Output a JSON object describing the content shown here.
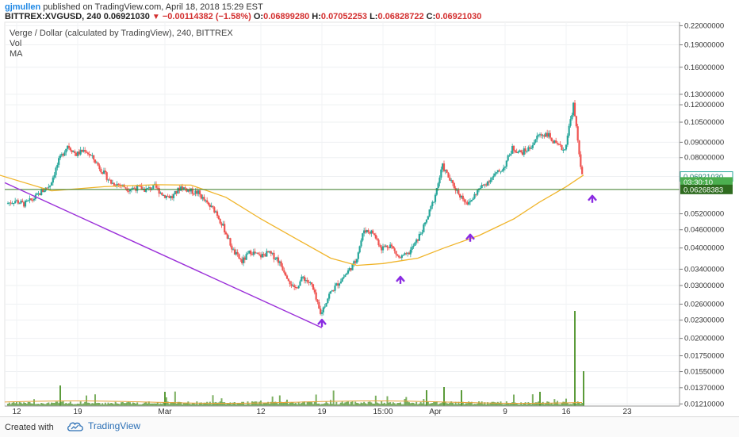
{
  "header": {
    "user": "gjmullen",
    "published": " published on TradingView.com, April 18, 2018 15:29 EST",
    "symbol": "BITTREX:XVGUSD, 240",
    "price": "0.06921030",
    "change": "−0.00114382 (−1.58%)",
    "ohlc": {
      "o_label": "O:",
      "o": "0.06899280",
      "h_label": "H:",
      "h": "0.07052253",
      "l_label": "L:",
      "l": "0.06828722",
      "c_label": "C:",
      "c": "0.06921030"
    }
  },
  "legend": {
    "title": "Verge / Dollar (calculated by TradingView), 240, BITTREX",
    "vol": "Vol",
    "ma": "MA"
  },
  "footer": {
    "created": "Created with",
    "brand": "TradingView"
  },
  "colors": {
    "up": "#26a69a",
    "down": "#ef5350",
    "ma": "#f0b429",
    "trendline": "#9b30d9",
    "hline": "#3a7d27",
    "arrow": "#8a2be2",
    "vol": "#5b9b3a"
  },
  "chart_data": {
    "type": "candlestick",
    "title": "Verge / Dollar (calculated by TradingView), 240, BITTREX",
    "y_scale": "log",
    "ylim": [
      0.0119,
      0.226
    ],
    "y_ticks": [
      "0.22000000",
      "0.19000000",
      "0.16000000",
      "0.13000000",
      "0.12000000",
      "0.10500000",
      "0.09000000",
      "0.08000000",
      "0.06921030",
      "0.06268383",
      "0.05200000",
      "0.04600000",
      "0.04000000",
      "0.03400000",
      "0.03000000",
      "0.02600000",
      "0.02300000",
      "0.02000000",
      "0.01750000",
      "0.01550000",
      "0.01370000",
      "0.01210000"
    ],
    "x_ticks": [
      "12",
      "19",
      "Mar",
      "12",
      "19",
      "15:00",
      "Apr",
      "9",
      "16",
      "23"
    ],
    "price_tags": [
      {
        "label": "0.06921030",
        "value": 0.0692103,
        "style": "outline"
      },
      {
        "label": "03:30:10",
        "value": 0.0664,
        "style": "green"
      },
      {
        "label": "0.06268383",
        "value": 0.06268383,
        "style": "dark-green"
      }
    ],
    "horizontal_line": 0.06268383,
    "trendline": {
      "from": [
        "Feb 10",
        0.066
      ],
      "to": [
        "Mar 19",
        0.0217
      ]
    },
    "arrows": [
      {
        "date": "Mar 19",
        "value": 0.0228
      },
      {
        "date": "Mar 28",
        "value": 0.0317
      },
      {
        "date": "Apr 5",
        "value": 0.0438
      },
      {
        "date": "Apr 19",
        "value": 0.059
      }
    ],
    "close_series": [
      [
        "Feb 11",
        0.0562
      ],
      [
        "Feb 12",
        0.0575
      ],
      [
        "Feb 13",
        0.056
      ],
      [
        "Feb 14",
        0.058
      ],
      [
        "Feb 15",
        0.0615
      ],
      [
        "Feb 16",
        0.065
      ],
      [
        "Feb 17",
        0.078
      ],
      [
        "Feb 18",
        0.088
      ],
      [
        "Feb 19",
        0.082
      ],
      [
        "Feb 20",
        0.085
      ],
      [
        "Feb 21",
        0.079
      ],
      [
        "Feb 22",
        0.072
      ],
      [
        "Feb 23",
        0.066
      ],
      [
        "Feb 24",
        0.065
      ],
      [
        "Feb 25",
        0.063
      ],
      [
        "Feb 26",
        0.0635
      ],
      [
        "Feb 27",
        0.0625
      ],
      [
        "Feb 28",
        0.064
      ],
      [
        "Mar 1",
        0.06
      ],
      [
        "Mar 2",
        0.059
      ],
      [
        "Mar 3",
        0.064
      ],
      [
        "Mar 4",
        0.062
      ],
      [
        "Mar 5",
        0.061
      ],
      [
        "Mar 6",
        0.056
      ],
      [
        "Mar 7",
        0.053
      ],
      [
        "Mar 8",
        0.046
      ],
      [
        "Mar 9",
        0.039
      ],
      [
        "Mar 10",
        0.036
      ],
      [
        "Mar 11",
        0.039
      ],
      [
        "Mar 12",
        0.0375
      ],
      [
        "Mar 13",
        0.0385
      ],
      [
        "Mar 14",
        0.037
      ],
      [
        "Mar 15",
        0.033
      ],
      [
        "Mar 16",
        0.029
      ],
      [
        "Mar 17",
        0.032
      ],
      [
        "Mar 18",
        0.03
      ],
      [
        "Mar 19",
        0.024
      ],
      [
        "Mar 20",
        0.028
      ],
      [
        "Mar 21",
        0.0305
      ],
      [
        "Mar 22",
        0.033
      ],
      [
        "Mar 23",
        0.036
      ],
      [
        "Mar 24",
        0.046
      ],
      [
        "Mar 25",
        0.045
      ],
      [
        "Mar 26",
        0.04
      ],
      [
        "Mar 27",
        0.041
      ],
      [
        "Mar 28",
        0.037
      ],
      [
        "Mar 29",
        0.038
      ],
      [
        "Mar 30",
        0.042
      ],
      [
        "Mar 31",
        0.048
      ],
      [
        "Apr 1",
        0.058
      ],
      [
        "Apr 2",
        0.075
      ],
      [
        "Apr 3",
        0.066
      ],
      [
        "Apr 4",
        0.06
      ],
      [
        "Apr 5",
        0.056
      ],
      [
        "Apr 6",
        0.062
      ],
      [
        "Apr 7",
        0.066
      ],
      [
        "Apr 8",
        0.07
      ],
      [
        "Apr 9",
        0.074
      ],
      [
        "Apr 10",
        0.086
      ],
      [
        "Apr 11",
        0.083
      ],
      [
        "Apr 12",
        0.086
      ],
      [
        "Apr 13",
        0.095
      ],
      [
        "Apr 14",
        0.096
      ],
      [
        "Apr 15",
        0.088
      ],
      [
        "Apr 16",
        0.085
      ],
      [
        "Apr 17",
        0.12
      ],
      [
        "Apr 18",
        0.0692
      ]
    ],
    "ma_series": [
      [
        "Feb 10",
        0.07
      ],
      [
        "Feb 16",
        0.062
      ],
      [
        "Feb 22",
        0.064
      ],
      [
        "Feb 28",
        0.065
      ],
      [
        "Mar 4",
        0.0648
      ],
      [
        "Mar 8",
        0.059
      ],
      [
        "Mar 12",
        0.05
      ],
      [
        "Mar 16",
        0.043
      ],
      [
        "Mar 20",
        0.037
      ],
      [
        "Mar 23",
        0.035
      ],
      [
        "Mar 26",
        0.0355
      ],
      [
        "Mar 30",
        0.037
      ],
      [
        "Apr 2",
        0.04
      ],
      [
        "Apr 6",
        0.044
      ],
      [
        "Apr 10",
        0.05
      ],
      [
        "Apr 13",
        0.057
      ],
      [
        "Apr 16",
        0.064
      ],
      [
        "Apr 18",
        0.07
      ]
    ]
  }
}
